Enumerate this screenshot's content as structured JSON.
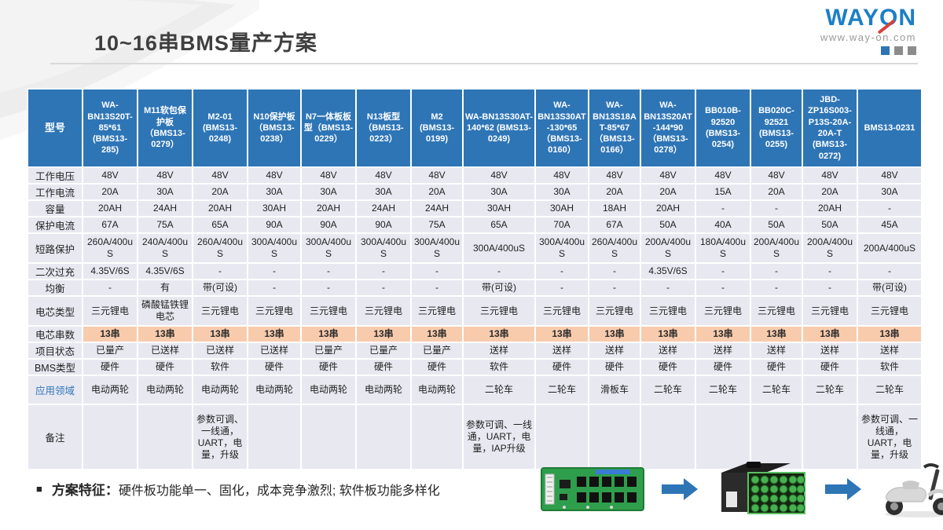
{
  "header": {
    "title": "10~16串BMS量产方案",
    "logo": {
      "brand_pre": "WAY",
      "brand_o": "O",
      "brand_post": "N",
      "url": "www.way-on.com"
    }
  },
  "table": {
    "corner_label": "型号",
    "models": [
      "WA-BN13S20T-85*61 (BMS13-285)",
      "M11软包保护板（BMS13-0279）",
      "M2-01 (BMS13-0248)",
      "N10保护板（BMS13-0238）",
      "N7一体板板型（BMS13-0229）",
      "N13板型（BMS13-0223）",
      "M2 (BMS13-0199)",
      "WA-BN13S30AT-140*62 (BMS13-0249)",
      "WA-BN13S30AT-130*65（BMS13-0160）",
      "WA-BN13S18AT-85*67（BMS13-0166）",
      "WA-BN13S20AT-144*90（BMS13-0278）",
      "BB010B-92520 (BMS13-0254)",
      "BB020C-92521 (BMS13-0255)",
      "JBD-ZP16S003-P13S-20A-20A-T (BMS13-0272)",
      "BMS13-0231"
    ],
    "rows": [
      {
        "label": "工作电压",
        "values": [
          "48V",
          "48V",
          "48V",
          "48V",
          "48V",
          "48V",
          "48V",
          "48V",
          "48V",
          "48V",
          "48V",
          "48V",
          "48V",
          "48V",
          "48V"
        ]
      },
      {
        "label": "工作电流",
        "values": [
          "20A",
          "30A",
          "20A",
          "30A",
          "30A",
          "30A",
          "20A",
          "30A",
          "30A",
          "20A",
          "20A",
          "15A",
          "20A",
          "20A",
          "30A"
        ]
      },
      {
        "label": "容量",
        "values": [
          "20AH",
          "24AH",
          "20AH",
          "30AH",
          "20AH",
          "24AH",
          "24AH",
          "30AH",
          "30AH",
          "18AH",
          "20AH",
          "-",
          "-",
          "20AH",
          "-"
        ]
      },
      {
        "label": "保护电流",
        "values": [
          "67A",
          "75A",
          "65A",
          "90A",
          "90A",
          "90A",
          "75A",
          "65A",
          "70A",
          "67A",
          "50A",
          "40A",
          "50A",
          "50A",
          "45A"
        ]
      },
      {
        "label": "短路保护",
        "values": [
          "260A/400uS",
          "240A/400uS",
          "260A/400uS",
          "300A/400uS",
          "300A/400uS",
          "300A/400uS",
          "300A/400uS",
          "300A/400uS",
          "300A/400uS",
          "260A/400uS",
          "200A/400uS",
          "180A/400uS",
          "200A/400uS",
          "200A/400uS",
          "200A/400uS"
        ]
      },
      {
        "label": "二次过充",
        "values": [
          "4.35V/6S",
          "4.35V/6S",
          "-",
          "-",
          "-",
          "-",
          "-",
          "-",
          "-",
          "-",
          "4.35V/6S",
          "-",
          "-",
          "-",
          "-"
        ]
      },
      {
        "label": "均衡",
        "values": [
          "-",
          "有",
          "带(可设)",
          "-",
          "-",
          "-",
          "-",
          "带(可设)",
          "-",
          "-",
          "-",
          "-",
          "-",
          "-",
          "带(可设)"
        ]
      },
      {
        "label": "电芯类型",
        "values": [
          "三元锂电",
          "磷酸锰铁锂电芯",
          "三元锂电",
          "三元锂电",
          "三元锂电",
          "三元锂电",
          "三元锂电",
          "三元锂电",
          "三元锂电",
          "三元锂电",
          "三元锂电",
          "三元锂电",
          "三元锂电",
          "三元锂电",
          "三元锂电"
        ]
      },
      {
        "label": "电芯串数",
        "highlight": true,
        "values": [
          "13串",
          "13串",
          "13串",
          "13串",
          "13串",
          "13串",
          "13串",
          "13串",
          "13串",
          "13串",
          "13串",
          "13串",
          "13串",
          "13串",
          "13串"
        ]
      },
      {
        "label": "项目状态",
        "values": [
          "已量产",
          "已送样",
          "已送样",
          "已送样",
          "已量产",
          "已量产",
          "已量产",
          "送样",
          "送样",
          "送样",
          "送样",
          "送样",
          "送样",
          "送样",
          "送样"
        ]
      },
      {
        "label": "BMS类型",
        "values": [
          "硬件",
          "硬件",
          "软件",
          "硬件",
          "硬件",
          "硬件",
          "硬件",
          "软件",
          "硬件",
          "硬件",
          "硬件",
          "硬件",
          "硬件",
          "硬件",
          "软件"
        ]
      },
      {
        "label": "应用领域",
        "label_blue": true,
        "values": [
          "电动两轮",
          "电动两轮",
          "电动两轮",
          "电动两轮",
          "电动两轮",
          "电动两轮",
          "电动两轮",
          "二轮车",
          "二轮车",
          "滑板车",
          "二轮车",
          "二轮车",
          "二轮车",
          "二轮车",
          "二轮车"
        ]
      },
      {
        "label": "备注",
        "values": [
          "",
          "",
          "参数可调、一线通，UART，电量，升级",
          "",
          "",
          "",
          "",
          "参数可调、一线通，UART，电量，IAP升级",
          "",
          "",
          "",
          "",
          "",
          "",
          "参数可调、一线通，UART，电量，升级"
        ]
      }
    ]
  },
  "footer": {
    "bullet": "■",
    "feature_label": "方案特征：",
    "feature_text": "硬件板功能单一、固化，成本竞争激烈; 软件板功能多样化",
    "flow_items": [
      "bms-board",
      "battery-pack",
      "electric-scooter"
    ]
  },
  "colors": {
    "header_blue": "#2e75b6",
    "cell_bg": "#e8e8f1",
    "highlight_peach": "#f8cbad",
    "logo_blue": "#1b7fc7",
    "logo_red": "#d6413b",
    "title_gray": "#3f3f3f"
  }
}
